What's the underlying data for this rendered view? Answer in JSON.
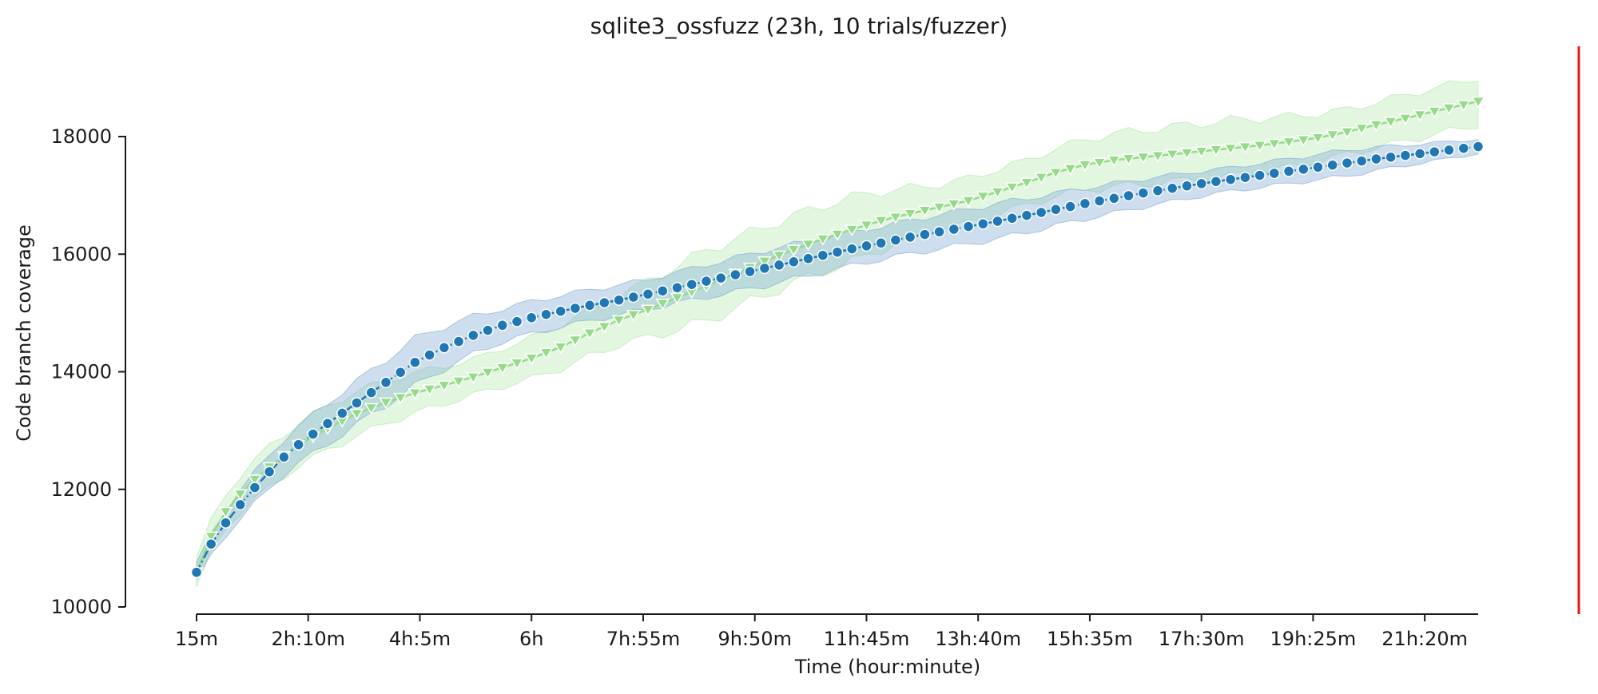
{
  "chart_data": {
    "type": "line",
    "title": "sqlite3_ossfuzz (23h, 10 trials/fuzzer)",
    "xlabel": "Time (hour:minute)",
    "ylabel": "Code branch coverage",
    "x_unit": "minutes",
    "x_start": 15,
    "x_step": 15,
    "xlim": [
      15,
      1335
    ],
    "ylim": [
      10000,
      19000
    ],
    "x_ticks": [
      {
        "value": 15,
        "label": "15m"
      },
      {
        "value": 130,
        "label": "2h:10m"
      },
      {
        "value": 245,
        "label": "4h:5m"
      },
      {
        "value": 360,
        "label": "6h"
      },
      {
        "value": 475,
        "label": "7h:55m"
      },
      {
        "value": 590,
        "label": "9h:50m"
      },
      {
        "value": 705,
        "label": "11h:45m"
      },
      {
        "value": 820,
        "label": "13h:40m"
      },
      {
        "value": 935,
        "label": "15h:35m"
      },
      {
        "value": 1050,
        "label": "17h:30m"
      },
      {
        "value": 1165,
        "label": "19h:25m"
      },
      {
        "value": 1280,
        "label": "21h:20m"
      }
    ],
    "y_ticks": [
      {
        "value": 10000,
        "label": "10000"
      },
      {
        "value": 12000,
        "label": "12000"
      },
      {
        "value": 14000,
        "label": "14000"
      },
      {
        "value": 16000,
        "label": "16000"
      },
      {
        "value": 18000,
        "label": "18000"
      }
    ],
    "vline": {
      "x": 1380,
      "color": "#e8141a"
    },
    "series": [
      {
        "marker": "triangle-down",
        "color": "#96db88",
        "band_color": "#a8e6a0",
        "knots": [
          [
            15,
            10590
          ],
          [
            30,
            11200
          ],
          [
            45,
            11620
          ],
          [
            60,
            11920
          ],
          [
            75,
            12170
          ],
          [
            90,
            12380
          ],
          [
            105,
            12570
          ],
          [
            120,
            12760
          ],
          [
            150,
            13040
          ],
          [
            180,
            13290
          ],
          [
            210,
            13480
          ],
          [
            240,
            13640
          ],
          [
            270,
            13770
          ],
          [
            300,
            13910
          ],
          [
            330,
            14070
          ],
          [
            360,
            14230
          ],
          [
            390,
            14420
          ],
          [
            420,
            14660
          ],
          [
            450,
            14880
          ],
          [
            480,
            15060
          ],
          [
            510,
            15260
          ],
          [
            540,
            15460
          ],
          [
            570,
            15670
          ],
          [
            600,
            15880
          ],
          [
            630,
            16080
          ],
          [
            660,
            16260
          ],
          [
            690,
            16420
          ],
          [
            720,
            16570
          ],
          [
            750,
            16690
          ],
          [
            780,
            16800
          ],
          [
            810,
            16910
          ],
          [
            840,
            17060
          ],
          [
            870,
            17220
          ],
          [
            900,
            17390
          ],
          [
            930,
            17520
          ],
          [
            960,
            17600
          ],
          [
            990,
            17650
          ],
          [
            1020,
            17700
          ],
          [
            1050,
            17750
          ],
          [
            1080,
            17800
          ],
          [
            1110,
            17850
          ],
          [
            1140,
            17910
          ],
          [
            1170,
            17980
          ],
          [
            1200,
            18080
          ],
          [
            1230,
            18200
          ],
          [
            1260,
            18310
          ],
          [
            1290,
            18430
          ],
          [
            1320,
            18540
          ],
          [
            1335,
            18600
          ]
        ],
        "band_half_width": [
          [
            15,
            250
          ],
          [
            90,
            350
          ],
          [
            180,
            380
          ],
          [
            300,
            300
          ],
          [
            450,
            420
          ],
          [
            540,
            600
          ],
          [
            690,
            550
          ],
          [
            780,
            380
          ],
          [
            870,
            380
          ],
          [
            960,
            450
          ],
          [
            1080,
            480
          ],
          [
            1200,
            380
          ],
          [
            1335,
            400
          ]
        ]
      },
      {
        "marker": "circle",
        "color": "#1f77b4",
        "band_color": "#7fa8d1",
        "knots": [
          [
            15,
            10590
          ],
          [
            30,
            11070
          ],
          [
            45,
            11430
          ],
          [
            60,
            11740
          ],
          [
            75,
            12030
          ],
          [
            90,
            12300
          ],
          [
            105,
            12550
          ],
          [
            120,
            12760
          ],
          [
            150,
            13120
          ],
          [
            180,
            13470
          ],
          [
            210,
            13820
          ],
          [
            240,
            14160
          ],
          [
            270,
            14410
          ],
          [
            300,
            14620
          ],
          [
            330,
            14790
          ],
          [
            360,
            14920
          ],
          [
            390,
            15030
          ],
          [
            420,
            15130
          ],
          [
            450,
            15220
          ],
          [
            480,
            15320
          ],
          [
            510,
            15430
          ],
          [
            540,
            15540
          ],
          [
            570,
            15650
          ],
          [
            600,
            15760
          ],
          [
            630,
            15870
          ],
          [
            660,
            15980
          ],
          [
            690,
            16090
          ],
          [
            720,
            16190
          ],
          [
            750,
            16290
          ],
          [
            780,
            16380
          ],
          [
            810,
            16470
          ],
          [
            840,
            16560
          ],
          [
            870,
            16660
          ],
          [
            900,
            16760
          ],
          [
            930,
            16860
          ],
          [
            960,
            16950
          ],
          [
            990,
            17040
          ],
          [
            1020,
            17120
          ],
          [
            1050,
            17200
          ],
          [
            1080,
            17270
          ],
          [
            1110,
            17340
          ],
          [
            1140,
            17410
          ],
          [
            1170,
            17480
          ],
          [
            1200,
            17550
          ],
          [
            1230,
            17620
          ],
          [
            1260,
            17680
          ],
          [
            1290,
            17740
          ],
          [
            1320,
            17800
          ],
          [
            1335,
            17830
          ]
        ],
        "band_half_width": [
          [
            15,
            150
          ],
          [
            60,
            250
          ],
          [
            150,
            350
          ],
          [
            240,
            400
          ],
          [
            330,
            280
          ],
          [
            480,
            250
          ],
          [
            600,
            300
          ],
          [
            720,
            280
          ],
          [
            840,
            300
          ],
          [
            960,
            250
          ],
          [
            1080,
            200
          ],
          [
            1200,
            220
          ],
          [
            1335,
            120
          ]
        ]
      }
    ]
  }
}
